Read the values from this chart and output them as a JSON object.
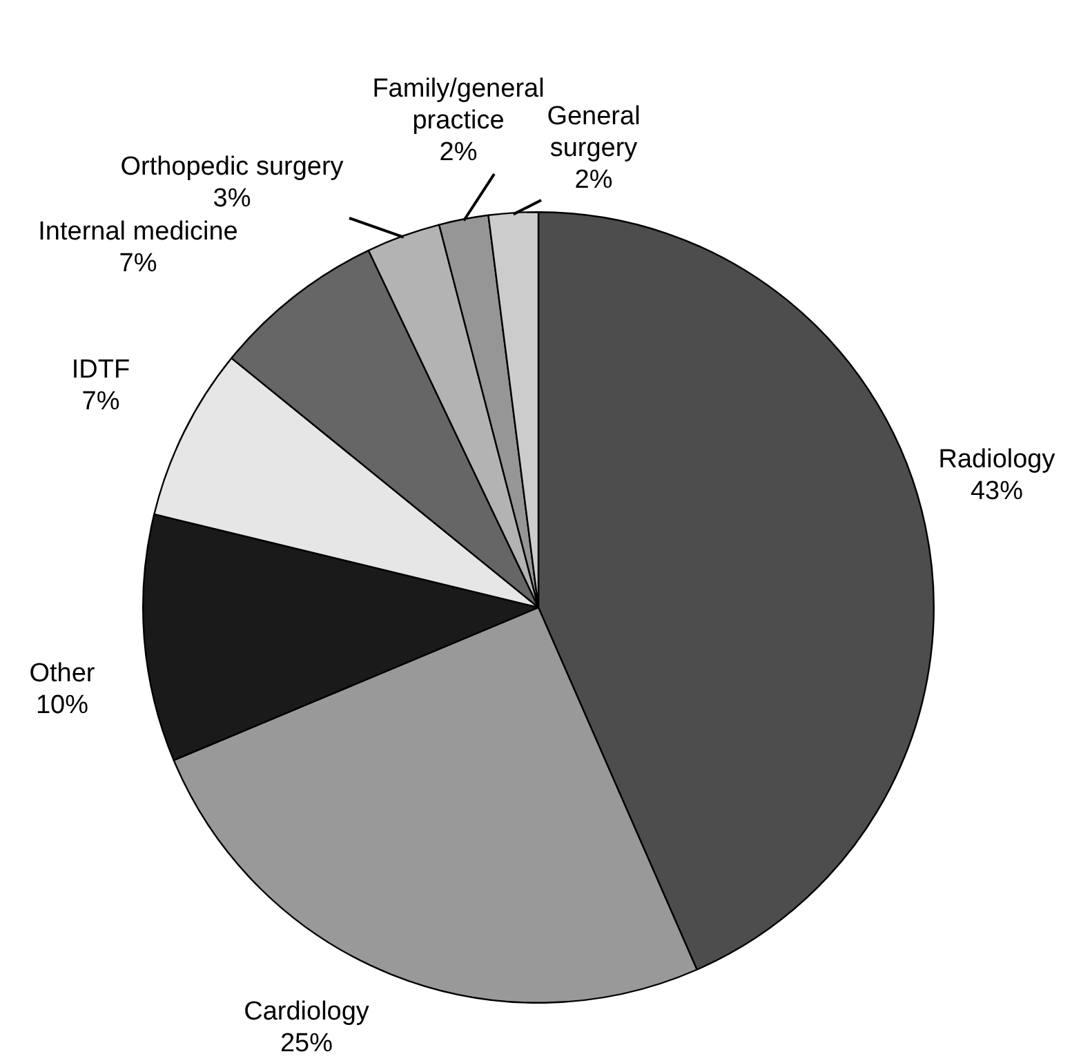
{
  "chart_data": {
    "type": "pie",
    "categories": [
      "Radiology",
      "Cardiology",
      "Other",
      "IDTF",
      "Internal medicine",
      "Orthopedic surgery",
      "Family/general practice",
      "General surgery"
    ],
    "values": [
      43,
      25,
      10,
      7,
      7,
      3,
      2,
      2
    ],
    "value_labels": [
      "43%",
      "25%",
      "10%",
      "7%",
      "7%",
      "3%",
      "2%",
      "2%"
    ],
    "colors": [
      "#4d4d4d",
      "#999999",
      "#1a1a1a",
      "#e6e6e6",
      "#666666",
      "#b3b3b3",
      "#969696",
      "#cccccc"
    ],
    "legend": false
  }
}
